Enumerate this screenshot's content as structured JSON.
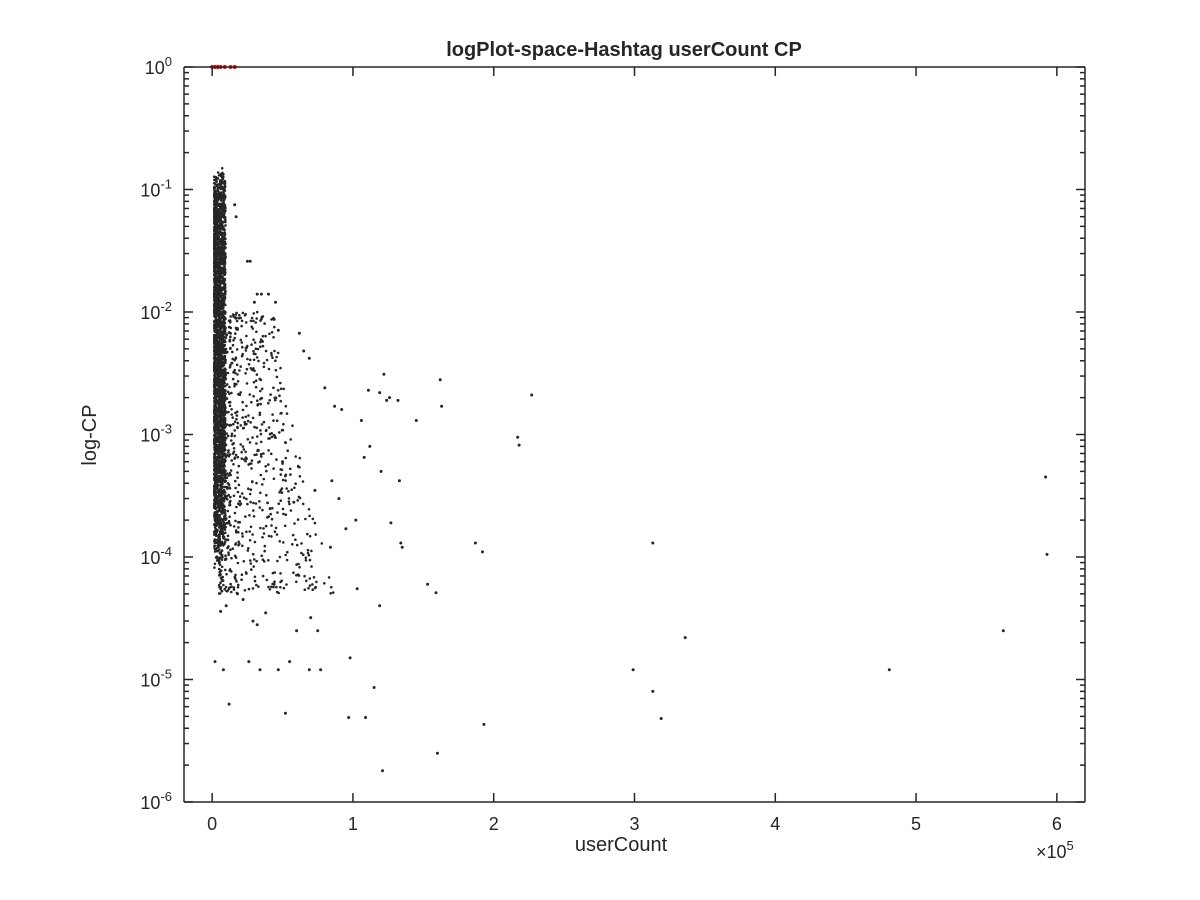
{
  "chart_data": {
    "type": "scatter",
    "title": "logPlot-space-Hashtag userCount CP",
    "xlabel": "userCount",
    "ylabel": "log-CP",
    "x_exponent_label": {
      "base": "×10",
      "exp": "5"
    },
    "xlim": [
      -20000,
      620000
    ],
    "ylim": [
      1e-06,
      1
    ],
    "yscale": "log",
    "x_ticks": [
      0,
      1,
      2,
      3,
      4,
      5,
      6
    ],
    "x_tick_multiplier": 100000,
    "y_ticks": [
      {
        "value": 1e-06,
        "base": "10",
        "exp": "-6"
      },
      {
        "value": 1e-05,
        "base": "10",
        "exp": "-5"
      },
      {
        "value": 0.0001,
        "base": "10",
        "exp": "-4"
      },
      {
        "value": 0.001,
        "base": "10",
        "exp": "-3"
      },
      {
        "value": 0.01,
        "base": "10",
        "exp": "-2"
      },
      {
        "value": 0.1,
        "base": "10",
        "exp": "-1"
      },
      {
        "value": 1,
        "base": "10",
        "exp": "0"
      }
    ],
    "grid": false,
    "series": [
      {
        "color": "#262626",
        "points": [
          [
            27000,
            0.026
          ],
          [
            16000,
            0.075
          ],
          [
            17000,
            0.06
          ],
          [
            25000,
            0.026
          ],
          [
            30000,
            0.012
          ],
          [
            32000,
            0.014
          ],
          [
            35000,
            0.014
          ],
          [
            40000,
            0.014
          ],
          [
            45000,
            0.012
          ],
          [
            44000,
            0.0087
          ],
          [
            47000,
            0.0071
          ],
          [
            62000,
            0.0067
          ],
          [
            65000,
            0.0048
          ],
          [
            69000,
            0.0042
          ],
          [
            80000,
            0.0024
          ],
          [
            87000,
            0.0017
          ],
          [
            92000,
            0.0016
          ],
          [
            106000,
            0.0013
          ],
          [
            111000,
            0.0023
          ],
          [
            119000,
            0.0022
          ],
          [
            122000,
            0.0031
          ],
          [
            124000,
            0.0019
          ],
          [
            126000,
            0.002
          ],
          [
            132000,
            0.0019
          ],
          [
            145000,
            0.0013
          ],
          [
            162000,
            0.0028
          ],
          [
            163000,
            0.0017
          ],
          [
            227000,
            0.0021
          ],
          [
            217000,
            0.00095
          ],
          [
            218000,
            0.00082
          ],
          [
            108000,
            0.00065
          ],
          [
            133000,
            0.00042
          ],
          [
            102000,
            0.0002
          ],
          [
            127000,
            0.00019
          ],
          [
            134000,
            0.00013
          ],
          [
            135000,
            0.00012
          ],
          [
            187000,
            0.00013
          ],
          [
            192000,
            0.00011
          ],
          [
            313000,
            0.00013
          ],
          [
            592000,
            0.00045
          ],
          [
            593000,
            0.000105
          ],
          [
            562000,
            2.5e-05
          ],
          [
            481000,
            1.2e-05
          ],
          [
            336000,
            2.2e-05
          ],
          [
            299000,
            1.2e-05
          ],
          [
            313000,
            8e-06
          ],
          [
            319000,
            4.8e-06
          ],
          [
            193000,
            4.3e-06
          ],
          [
            160000,
            2.5e-06
          ],
          [
            121000,
            1.8e-06
          ],
          [
            97000,
            4.9e-06
          ],
          [
            109000,
            4.9e-06
          ],
          [
            52000,
            5.3e-06
          ],
          [
            12000,
            6.3e-06
          ],
          [
            115000,
            8.6e-06
          ],
          [
            98000,
            1.5e-05
          ],
          [
            103000,
            5.5e-05
          ],
          [
            119000,
            4e-05
          ],
          [
            153000,
            6e-05
          ],
          [
            159000,
            5.1e-05
          ],
          [
            77000,
            1.2e-05
          ],
          [
            69000,
            1.2e-05
          ],
          [
            55000,
            1.4e-05
          ],
          [
            47000,
            1.2e-05
          ],
          [
            34000,
            1.2e-05
          ],
          [
            26000,
            1.4e-05
          ],
          [
            8000,
            1.2e-05
          ],
          [
            2000,
            1.4e-05
          ],
          [
            60000,
            2.5e-05
          ],
          [
            70000,
            3.2e-05
          ],
          [
            75000,
            2.5e-05
          ],
          [
            84000,
            0.00012
          ],
          [
            95000,
            0.00017
          ],
          [
            112000,
            0.0008
          ],
          [
            120000,
            0.0005
          ],
          [
            90000,
            0.0003
          ],
          [
            85000,
            0.00042
          ],
          [
            73000,
            0.00035
          ],
          [
            58000,
            0.00028
          ],
          [
            50000,
            0.0006
          ],
          [
            44000,
            6e-05
          ],
          [
            38000,
            3.5e-05
          ],
          [
            32000,
            2.8e-05
          ],
          [
            29000,
            3e-05
          ],
          [
            22000,
            4.5e-05
          ],
          [
            18000,
            5e-05
          ],
          [
            10000,
            4e-05
          ],
          [
            6000,
            3.6e-05
          ]
        ]
      },
      {
        "color": "#e60000",
        "points": [
          [
            0,
            1
          ],
          [
            2000,
            1
          ],
          [
            4000,
            1
          ],
          [
            6000,
            1
          ],
          [
            9000,
            1
          ],
          [
            13000,
            1
          ],
          [
            16000,
            1
          ]
        ]
      }
    ]
  }
}
